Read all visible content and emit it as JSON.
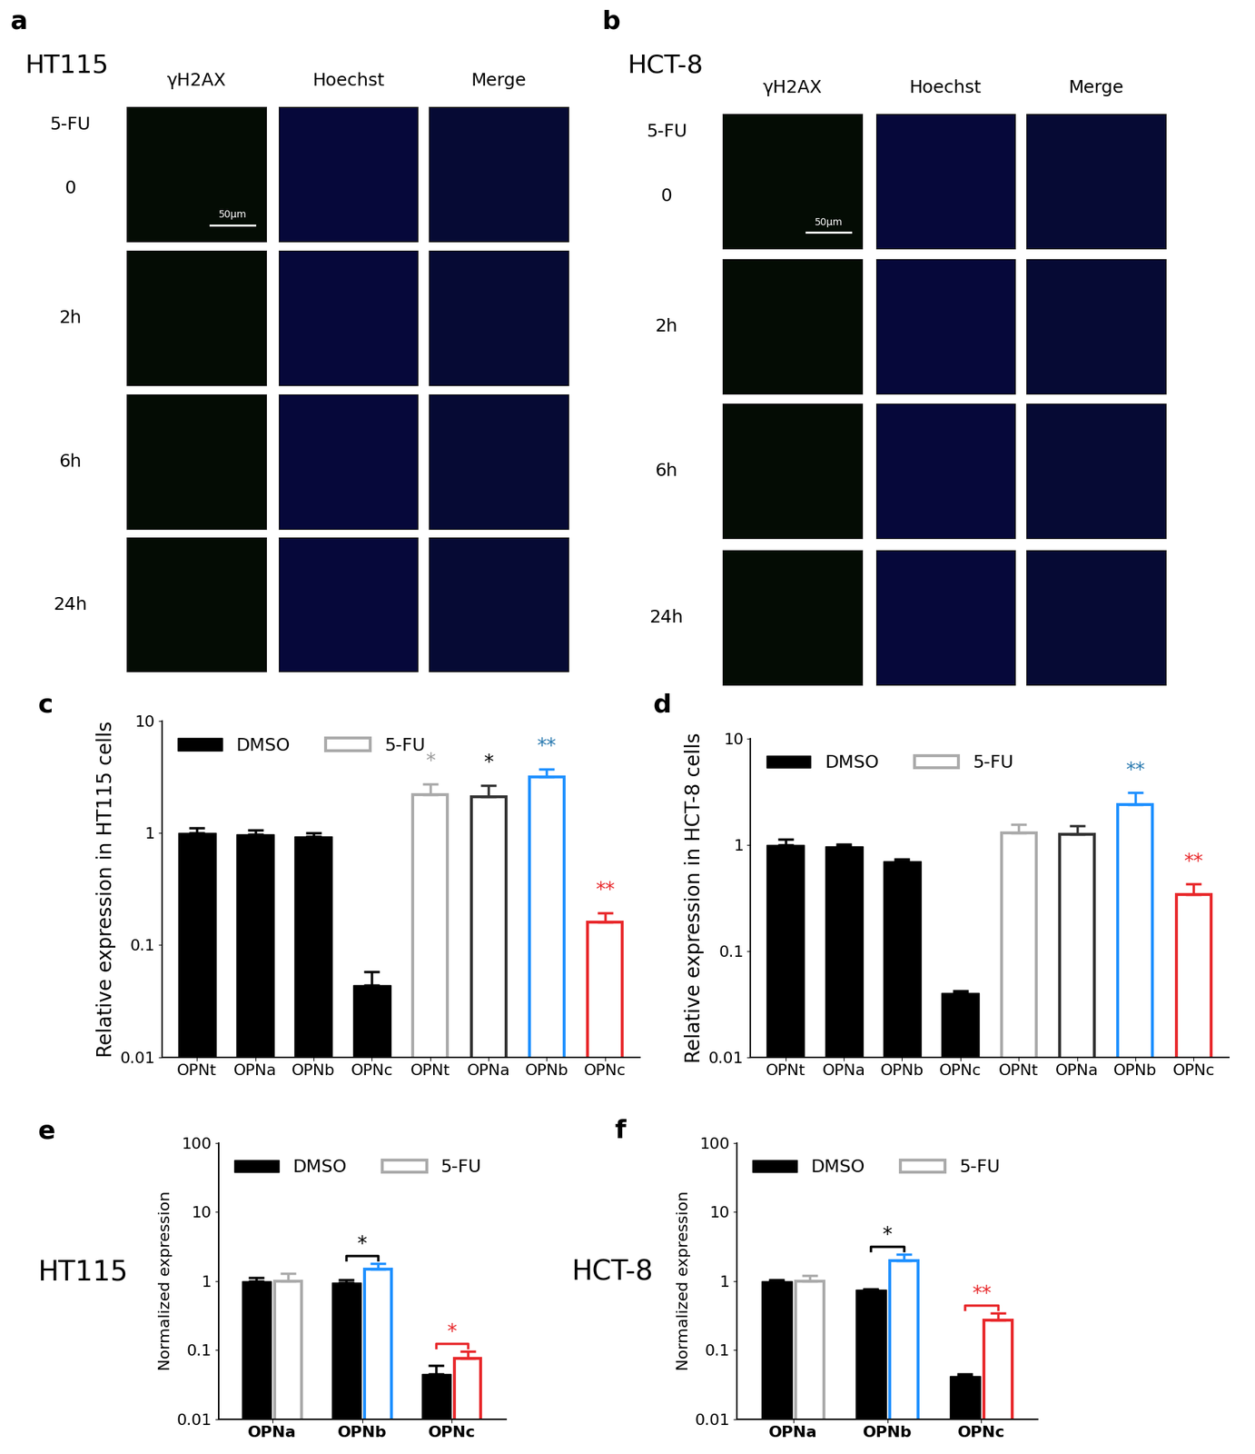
{
  "microscopy": [
    {
      "panel": "a",
      "cell_line": "HT115",
      "treatment": "5-FU",
      "columns": [
        "γH2AX",
        "Hoechst",
        "Merge"
      ],
      "rows": [
        "0",
        "2h",
        "6h",
        "24h"
      ],
      "scale_bar": "50μm"
    },
    {
      "panel": "b",
      "cell_line": "HCT-8",
      "treatment": "5-FU",
      "columns": [
        "γH2AX",
        "Hoechst",
        "Merge"
      ],
      "rows": [
        "0",
        "2h",
        "6h",
        "24h"
      ],
      "scale_bar": "50μm"
    }
  ],
  "chart_data": [
    {
      "type": "bar",
      "panel": "c",
      "y_label": "Relative expression in HT115 cells",
      "log": "y",
      "categories": [
        "OPNt",
        "OPNa",
        "OPNb",
        "OPNc",
        "OPNt",
        "OPNa",
        "OPNb",
        "OPNc"
      ],
      "series": [
        {
          "name": "DMSO",
          "color": "#000000",
          "values": [
            1.0,
            0.97,
            0.93,
            0.044,
            null,
            null,
            null,
            null
          ],
          "errors": [
            0.12,
            0.1,
            0.08,
            0.014,
            null,
            null,
            null,
            null
          ]
        },
        {
          "name": "5-FU",
          "color": "#aaaaaa",
          "colors": [
            null,
            null,
            null,
            null,
            "#aaaaaa",
            "#333333",
            "#1e90ff",
            "#e8282b"
          ],
          "values": [
            null,
            null,
            null,
            null,
            2.2,
            2.1,
            3.2,
            0.16
          ],
          "errors": [
            null,
            null,
            null,
            null,
            0.55,
            0.55,
            0.55,
            0.035
          ]
        }
      ],
      "annotations": [
        {
          "text": "*",
          "index": 4,
          "color": "#999999"
        },
        {
          "text": "*",
          "index": 5,
          "color": "#000000"
        },
        {
          "text": "**",
          "index": 6,
          "color": "#2a7ab0"
        },
        {
          "text": "**",
          "index": 7,
          "color": "#e8282b"
        }
      ],
      "ylim": [
        0.01,
        10
      ],
      "yticks": [
        0.01,
        0.1,
        1,
        10
      ],
      "legend": "upper left"
    },
    {
      "type": "bar",
      "panel": "d",
      "y_label": "Relative expression in HCT-8 cells",
      "log": "y",
      "categories": [
        "OPNt",
        "OPNa",
        "OPNb",
        "OPNc",
        "OPNt",
        "OPNa",
        "OPNb",
        "OPNc"
      ],
      "series": [
        {
          "name": "DMSO",
          "color": "#000000",
          "values": [
            1.0,
            0.97,
            0.7,
            0.04,
            null,
            null,
            null,
            null
          ],
          "errors": [
            0.12,
            0.04,
            0.03,
            0.002,
            null,
            null,
            null,
            null
          ]
        },
        {
          "name": "5-FU",
          "color": "#aaaaaa",
          "colors": [
            null,
            null,
            null,
            null,
            "#aaaaaa",
            "#333333",
            "#1e90ff",
            "#e8282b"
          ],
          "values": [
            null,
            null,
            null,
            null,
            1.3,
            1.25,
            2.4,
            0.34
          ],
          "errors": [
            null,
            null,
            null,
            null,
            0.25,
            0.25,
            0.7,
            0.09
          ]
        }
      ],
      "annotations": [
        {
          "text": "**",
          "index": 6,
          "color": "#2a7ab0"
        },
        {
          "text": "**",
          "index": 7,
          "color": "#e8282b"
        }
      ],
      "ylim": [
        0.01,
        10
      ],
      "yticks": [
        0.01,
        0.1,
        1,
        10
      ],
      "legend": "upper left"
    },
    {
      "type": "bar",
      "panel": "e",
      "subtitle": "HT115",
      "y_label": "Normalized expression",
      "log": "y",
      "categories": [
        "OPNa",
        "OPNb",
        "OPNc"
      ],
      "series": [
        {
          "name": "DMSO",
          "color": "#000000",
          "values": [
            1.0,
            0.95,
            0.045
          ],
          "errors": [
            0.12,
            0.1,
            0.015
          ]
        },
        {
          "name": "5-FU",
          "color": "#aaaaaa",
          "colors": [
            "#aaaaaa",
            "#1e90ff",
            "#e8282b"
          ],
          "values": [
            1.0,
            1.5,
            0.075
          ],
          "errors": [
            0.3,
            0.3,
            0.02
          ]
        }
      ],
      "annotations": [
        {
          "text": "*",
          "index": 1,
          "color": "#000000"
        },
        {
          "text": "*",
          "index": 2,
          "color": "#e8282b"
        }
      ],
      "ylim": [
        0.01,
        100
      ],
      "yticks": [
        0.01,
        0.1,
        1,
        10,
        100
      ],
      "legend": "upper left"
    },
    {
      "type": "bar",
      "panel": "f",
      "subtitle": "HCT-8",
      "y_label": "Normalized expression",
      "log": "y",
      "categories": [
        "OPNa",
        "OPNb",
        "OPNc"
      ],
      "series": [
        {
          "name": "DMSO",
          "color": "#000000",
          "values": [
            1.0,
            0.74,
            0.042
          ],
          "errors": [
            0.05,
            0.03,
            0.003
          ]
        },
        {
          "name": "5-FU",
          "color": "#aaaaaa",
          "colors": [
            "#aaaaaa",
            "#1e90ff",
            "#e8282b"
          ],
          "values": [
            1.0,
            1.95,
            0.27
          ],
          "errors": [
            0.2,
            0.5,
            0.07
          ]
        }
      ],
      "annotations": [
        {
          "text": "*",
          "index": 1,
          "color": "#000000"
        },
        {
          "text": "**",
          "index": 2,
          "color": "#e8282b"
        }
      ],
      "ylim": [
        0.01,
        100
      ],
      "yticks": [
        0.01,
        0.1,
        1,
        10,
        100
      ],
      "legend": "upper left"
    }
  ]
}
